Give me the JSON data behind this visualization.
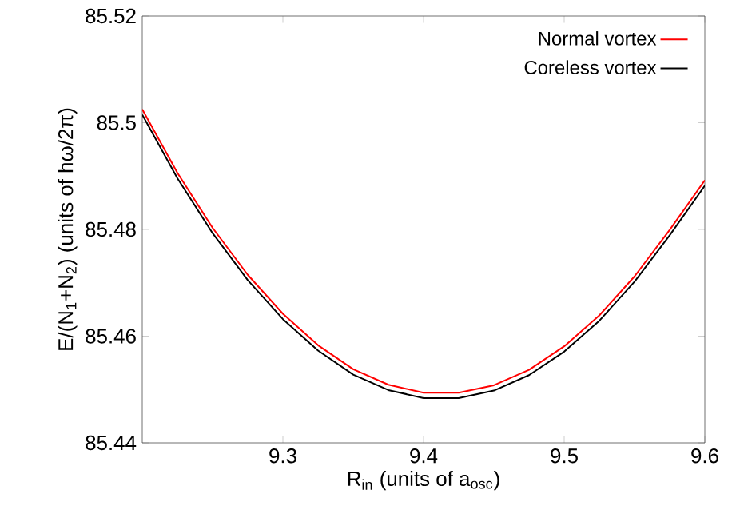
{
  "chart_data": {
    "type": "line",
    "xlabel": "R$_{in}$ (units of a$_{osc}$)",
    "ylabel": "E/(N$_{1}$+N$_{2}$) (units of hω/2π)",
    "x": [
      9.2,
      9.225,
      9.25,
      9.275,
      9.3,
      9.325,
      9.35,
      9.375,
      9.4,
      9.425,
      9.45,
      9.475,
      9.5,
      9.525,
      9.55,
      9.575,
      9.6
    ],
    "series": [
      {
        "name": "Normal vortex",
        "color": "#ff0000",
        "values": [
          85.5025,
          85.4906,
          85.4803,
          85.4715,
          85.4642,
          85.4583,
          85.4538,
          85.4509,
          85.4494,
          85.4494,
          85.4508,
          85.4537,
          85.4581,
          85.4639,
          85.4712,
          85.4799,
          85.4892
        ]
      },
      {
        "name": "Coreless vortex",
        "color": "#000000",
        "values": [
          85.5015,
          85.4896,
          85.4793,
          85.4705,
          85.4632,
          85.4573,
          85.4528,
          85.4499,
          85.4484,
          85.4484,
          85.4498,
          85.4527,
          85.4571,
          85.4629,
          85.4702,
          85.4789,
          85.4882
        ]
      }
    ],
    "xlim": [
      9.2,
      9.6
    ],
    "xticks": [
      9.3,
      9.4,
      9.5,
      9.6
    ],
    "ylim": [
      85.44,
      85.52
    ],
    "yticks": [
      85.44,
      85.46,
      85.48,
      85.5,
      85.52
    ],
    "grid": false,
    "legend": "top right",
    "marker": "none",
    "line_style": "solid"
  }
}
